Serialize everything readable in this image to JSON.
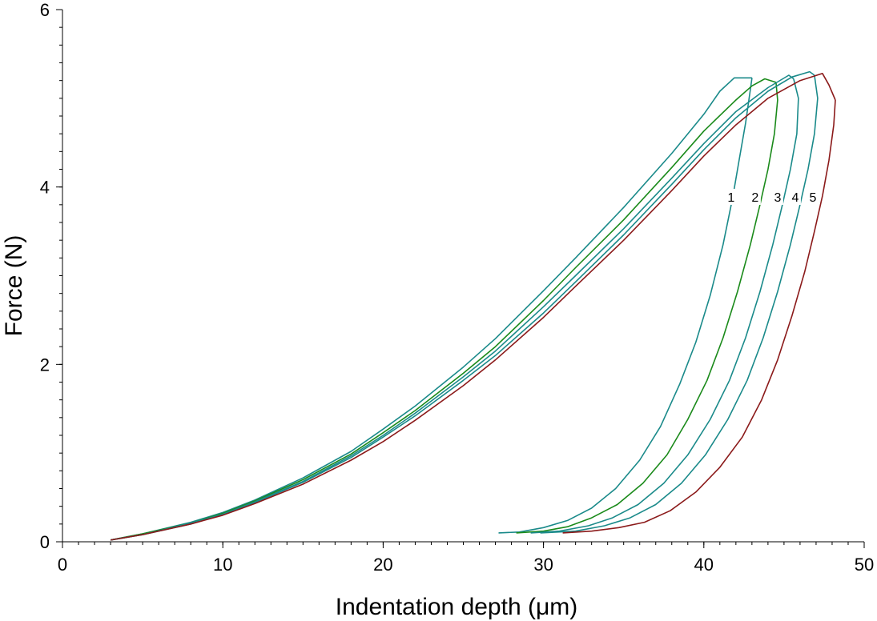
{
  "chart_data": {
    "type": "line",
    "title": "",
    "xlabel": "Indentation depth (μm)",
    "ylabel": "Force (N)",
    "xlim": [
      0,
      50
    ],
    "ylim": [
      0,
      6
    ],
    "x_ticks": [
      0,
      10,
      20,
      30,
      40,
      50
    ],
    "y_ticks": [
      0,
      2,
      4,
      6
    ],
    "x_minor_step": 1,
    "y_minor_step": 0.2,
    "grid": false,
    "series": [
      {
        "name": "1",
        "color": "#1a8a8a",
        "loading": [
          [
            3,
            0.02
          ],
          [
            5,
            0.09
          ],
          [
            8,
            0.22
          ],
          [
            10,
            0.33
          ],
          [
            12,
            0.47
          ],
          [
            15,
            0.72
          ],
          [
            18,
            1.02
          ],
          [
            20,
            1.27
          ],
          [
            22,
            1.53
          ],
          [
            25,
            1.97
          ],
          [
            27,
            2.29
          ],
          [
            30,
            2.83
          ],
          [
            32,
            3.2
          ],
          [
            35,
            3.77
          ],
          [
            38,
            4.38
          ],
          [
            40,
            4.82
          ],
          [
            41,
            5.08
          ],
          [
            41.9,
            5.23
          ],
          [
            43,
            5.23
          ]
        ],
        "unloading": [
          [
            43,
            5.23
          ],
          [
            42.9,
            5.1
          ],
          [
            42.6,
            4.72
          ],
          [
            42.2,
            4.3
          ],
          [
            41.8,
            3.88
          ],
          [
            41.2,
            3.35
          ],
          [
            40.4,
            2.78
          ],
          [
            39.5,
            2.25
          ],
          [
            38.5,
            1.78
          ],
          [
            37.3,
            1.3
          ],
          [
            36,
            0.92
          ],
          [
            34.5,
            0.6
          ],
          [
            33,
            0.38
          ],
          [
            31.5,
            0.24
          ],
          [
            30,
            0.16
          ],
          [
            28.5,
            0.11
          ],
          [
            27.2,
            0.1
          ]
        ]
      },
      {
        "name": "2",
        "color": "#1a8a1a",
        "loading": [
          [
            3,
            0.02
          ],
          [
            5,
            0.09
          ],
          [
            8,
            0.21
          ],
          [
            10,
            0.32
          ],
          [
            12,
            0.46
          ],
          [
            15,
            0.7
          ],
          [
            18,
            0.99
          ],
          [
            20,
            1.23
          ],
          [
            22,
            1.48
          ],
          [
            25,
            1.9
          ],
          [
            27,
            2.2
          ],
          [
            30,
            2.72
          ],
          [
            32,
            3.09
          ],
          [
            35,
            3.63
          ],
          [
            38,
            4.22
          ],
          [
            40,
            4.63
          ],
          [
            42,
            4.98
          ],
          [
            43,
            5.14
          ],
          [
            43.8,
            5.22
          ],
          [
            44.5,
            5.18
          ]
        ],
        "unloading": [
          [
            44.5,
            5.18
          ],
          [
            44.6,
            4.98
          ],
          [
            44.4,
            4.6
          ],
          [
            44,
            4.2
          ],
          [
            43.5,
            3.8
          ],
          [
            42.9,
            3.35
          ],
          [
            42.1,
            2.82
          ],
          [
            41.2,
            2.3
          ],
          [
            40.2,
            1.82
          ],
          [
            39,
            1.38
          ],
          [
            37.7,
            0.98
          ],
          [
            36.2,
            0.66
          ],
          [
            34.6,
            0.42
          ],
          [
            33,
            0.27
          ],
          [
            31.5,
            0.17
          ],
          [
            30,
            0.12
          ],
          [
            28.3,
            0.1
          ]
        ]
      },
      {
        "name": "3",
        "color": "#1a8a8a",
        "loading": [
          [
            3,
            0.02
          ],
          [
            5,
            0.08
          ],
          [
            8,
            0.21
          ],
          [
            10,
            0.31
          ],
          [
            12,
            0.45
          ],
          [
            15,
            0.68
          ],
          [
            18,
            0.97
          ],
          [
            20,
            1.2
          ],
          [
            22,
            1.45
          ],
          [
            25,
            1.86
          ],
          [
            27,
            2.15
          ],
          [
            30,
            2.65
          ],
          [
            32,
            3.0
          ],
          [
            35,
            3.53
          ],
          [
            38,
            4.1
          ],
          [
            40,
            4.49
          ],
          [
            42,
            4.85
          ],
          [
            44,
            5.12
          ],
          [
            45.3,
            5.26
          ],
          [
            45.6,
            5.22
          ]
        ],
        "unloading": [
          [
            45.6,
            5.22
          ],
          [
            45.9,
            5.0
          ],
          [
            45.8,
            4.6
          ],
          [
            45.4,
            4.2
          ],
          [
            44.9,
            3.8
          ],
          [
            44.3,
            3.35
          ],
          [
            43.5,
            2.82
          ],
          [
            42.6,
            2.3
          ],
          [
            41.6,
            1.82
          ],
          [
            40.4,
            1.38
          ],
          [
            39,
            0.98
          ],
          [
            37.5,
            0.66
          ],
          [
            35.9,
            0.42
          ],
          [
            34.3,
            0.27
          ],
          [
            32.8,
            0.18
          ],
          [
            31,
            0.12
          ],
          [
            29.2,
            0.1
          ]
        ]
      },
      {
        "name": "4",
        "color": "#1a8a8a",
        "loading": [
          [
            3,
            0.02
          ],
          [
            5,
            0.08
          ],
          [
            8,
            0.2
          ],
          [
            10,
            0.31
          ],
          [
            12,
            0.44
          ],
          [
            15,
            0.67
          ],
          [
            18,
            0.95
          ],
          [
            20,
            1.18
          ],
          [
            22,
            1.42
          ],
          [
            25,
            1.82
          ],
          [
            27,
            2.1
          ],
          [
            30,
            2.58
          ],
          [
            32,
            2.93
          ],
          [
            35,
            3.46
          ],
          [
            38,
            4.03
          ],
          [
            40,
            4.42
          ],
          [
            42,
            4.78
          ],
          [
            44,
            5.08
          ],
          [
            45.5,
            5.24
          ],
          [
            46.6,
            5.3
          ],
          [
            46.9,
            5.26
          ]
        ],
        "unloading": [
          [
            46.9,
            5.26
          ],
          [
            47.1,
            5.0
          ],
          [
            46.9,
            4.6
          ],
          [
            46.5,
            4.2
          ],
          [
            46,
            3.8
          ],
          [
            45.4,
            3.35
          ],
          [
            44.6,
            2.82
          ],
          [
            43.7,
            2.3
          ],
          [
            42.7,
            1.82
          ],
          [
            41.5,
            1.38
          ],
          [
            40.1,
            0.98
          ],
          [
            38.6,
            0.66
          ],
          [
            37,
            0.42
          ],
          [
            35.4,
            0.27
          ],
          [
            33.8,
            0.18
          ],
          [
            32,
            0.12
          ],
          [
            29.8,
            0.1
          ]
        ]
      },
      {
        "name": "5",
        "color": "#8b1a1a",
        "loading": [
          [
            3,
            0.02
          ],
          [
            5,
            0.08
          ],
          [
            8,
            0.2
          ],
          [
            10,
            0.3
          ],
          [
            12,
            0.43
          ],
          [
            15,
            0.65
          ],
          [
            18,
            0.92
          ],
          [
            20,
            1.13
          ],
          [
            22,
            1.37
          ],
          [
            25,
            1.76
          ],
          [
            27,
            2.05
          ],
          [
            30,
            2.53
          ],
          [
            32,
            2.88
          ],
          [
            35,
            3.4
          ],
          [
            38,
            3.96
          ],
          [
            40,
            4.35
          ],
          [
            42,
            4.7
          ],
          [
            44,
            5.0
          ],
          [
            46,
            5.2
          ],
          [
            47.4,
            5.28
          ],
          [
            47.8,
            5.15
          ],
          [
            48.2,
            4.98
          ]
        ],
        "unloading": [
          [
            48.2,
            4.98
          ],
          [
            48.1,
            4.7
          ],
          [
            47.8,
            4.3
          ],
          [
            47.4,
            3.9
          ],
          [
            46.9,
            3.5
          ],
          [
            46.3,
            3.05
          ],
          [
            45.5,
            2.55
          ],
          [
            44.6,
            2.05
          ],
          [
            43.6,
            1.6
          ],
          [
            42.4,
            1.18
          ],
          [
            41,
            0.84
          ],
          [
            39.5,
            0.56
          ],
          [
            37.9,
            0.35
          ],
          [
            36.3,
            0.22
          ],
          [
            34.7,
            0.16
          ],
          [
            33,
            0.12
          ],
          [
            31.2,
            0.1
          ]
        ]
      }
    ],
    "annotations": [
      {
        "text": "1",
        "x": 41.7,
        "y": 3.88
      },
      {
        "text": "2",
        "x": 43.2,
        "y": 3.88
      },
      {
        "text": "3",
        "x": 44.6,
        "y": 3.88
      },
      {
        "text": "4",
        "x": 45.7,
        "y": 3.88
      },
      {
        "text": "5",
        "x": 46.8,
        "y": 3.88
      }
    ]
  }
}
